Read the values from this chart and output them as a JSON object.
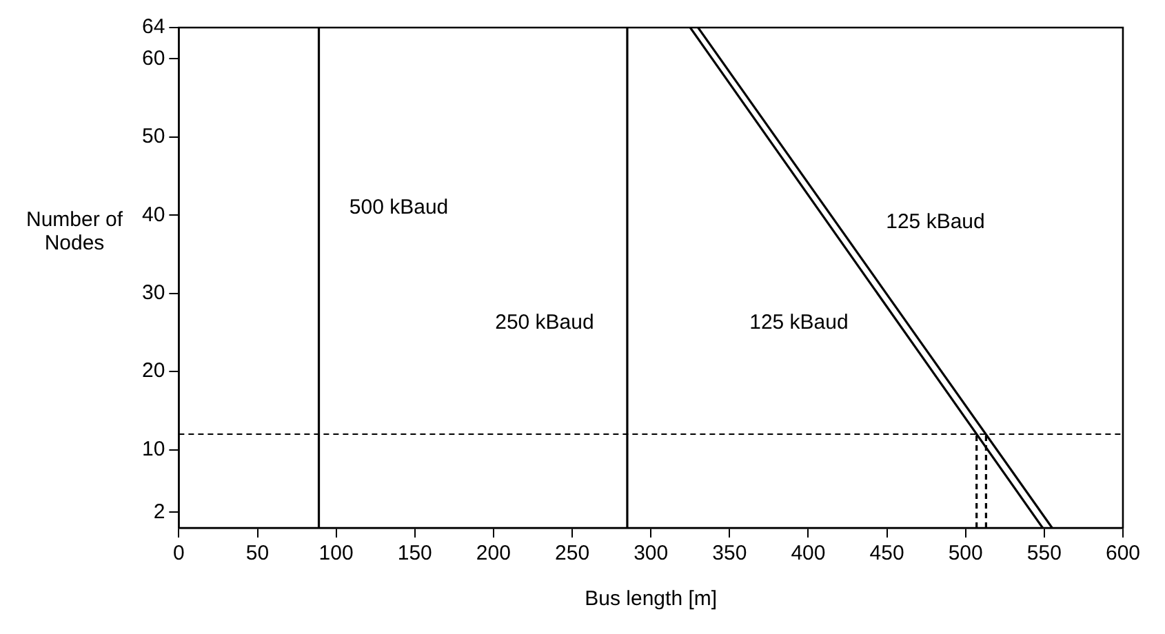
{
  "chart_data": {
    "type": "line",
    "xlabel": "Bus length [m]",
    "ylabel": "Number of Nodes",
    "xlim": [
      0,
      600
    ],
    "xticks": [
      0,
      50,
      100,
      150,
      200,
      250,
      300,
      350,
      400,
      450,
      500,
      550,
      600
    ],
    "ylim": [
      0,
      64
    ],
    "yticks": [
      2,
      10,
      20,
      30,
      40,
      50,
      60,
      64
    ],
    "grid": false,
    "legend": false,
    "marker": "none",
    "series": [
      {
        "name": "500 kBaud",
        "color": "#000000",
        "x": [
          89,
          89
        ],
        "values": [
          0,
          64
        ],
        "line_style": "solid"
      },
      {
        "name": "250 kBaud",
        "color": "#000000",
        "x": [
          285,
          285
        ],
        "values": [
          0,
          64
        ],
        "line_style": "solid"
      },
      {
        "name": "125 kBaud",
        "color": "#000000",
        "x": [
          325,
          549
        ],
        "values": [
          64,
          0
        ],
        "line_style": "solid"
      },
      {
        "name": "125 kBaud",
        "color": "#000000",
        "x": [
          330,
          555
        ],
        "values": [
          64,
          0
        ],
        "line_style": "solid"
      },
      {
        "color": "#000000",
        "x": [
          507,
          507
        ],
        "values": [
          0,
          12
        ],
        "line_style": "dashed"
      },
      {
        "color": "#000000",
        "x": [
          513,
          513
        ],
        "values": [
          0,
          12
        ],
        "line_style": "dashed"
      }
    ],
    "ref_lines": [
      {
        "axis": "y",
        "value": 12,
        "line_style": "dashed",
        "color": "#000000"
      }
    ]
  }
}
